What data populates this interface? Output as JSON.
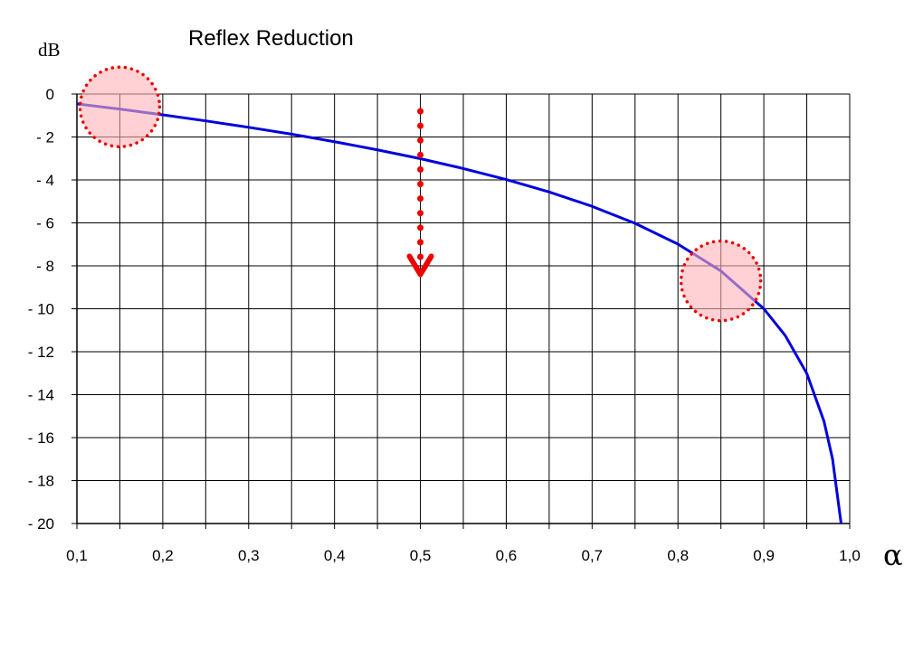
{
  "chart_data": {
    "type": "line",
    "title": "Reflex Reduction",
    "xlabel": "α",
    "ylabel": "dB",
    "xlim": [
      0.1,
      1.0
    ],
    "ylim": [
      -20,
      0
    ],
    "grid": true,
    "x_ticks": [
      "0,1",
      "0,2",
      "0,3",
      "0,4",
      "0,5",
      "0,6",
      "0,7",
      "0,8",
      "0,9",
      "1,0"
    ],
    "y_ticks": [
      "0",
      "- 2",
      "- 4",
      "- 6",
      "- 8",
      "- 10",
      "- 12",
      "- 14",
      "- 16",
      "- 18",
      "- 20"
    ],
    "series": [
      {
        "color": "#0000dd",
        "x": [
          0.1,
          0.15,
          0.2,
          0.25,
          0.3,
          0.35,
          0.4,
          0.45,
          0.5,
          0.55,
          0.6,
          0.65,
          0.7,
          0.75,
          0.8,
          0.85,
          0.9,
          0.925,
          0.95,
          0.97,
          0.98,
          0.99,
          0.995
        ],
        "y": [
          -0.46,
          -0.7,
          -0.97,
          -1.25,
          -1.55,
          -1.87,
          -2.22,
          -2.6,
          -3.01,
          -3.47,
          -3.98,
          -4.56,
          -5.23,
          -6.02,
          -6.99,
          -8.24,
          -10.0,
          -11.25,
          -13.01,
          -15.23,
          -16.99,
          -20.0,
          -23.0
        ]
      }
    ],
    "annotations": [
      {
        "type": "highlight-circle",
        "x": 0.15,
        "y": -0.6,
        "color": "#ffb3b8",
        "border": "#ee0000"
      },
      {
        "type": "highlight-circle",
        "x": 0.85,
        "y": -8.7,
        "color": "#ffb3b8",
        "border": "#ee0000"
      },
      {
        "type": "dotted-arrow",
        "x": 0.5,
        "y_start": -0.8,
        "y_end": -8.4,
        "color": "#ee0000"
      }
    ]
  }
}
